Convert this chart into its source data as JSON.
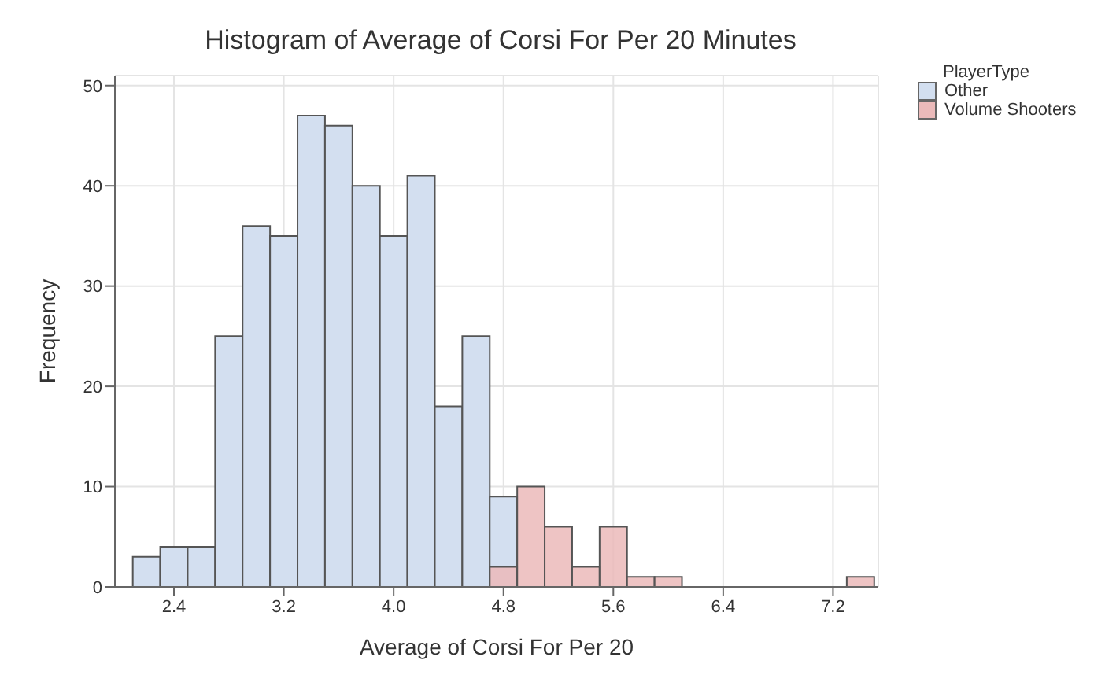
{
  "chart_data": {
    "type": "histogram",
    "title": "Histogram of Average of Corsi For Per 20 Minutes",
    "xlabel": "Average of Corsi For Per 20",
    "ylabel": "Frequency",
    "legend_title": "PlayerType",
    "bins": [
      2.1,
      2.3,
      2.5,
      2.7,
      2.9,
      3.1,
      3.3,
      3.5,
      3.7,
      3.9,
      4.1,
      4.3,
      4.5,
      4.7,
      4.9,
      5.1,
      5.3,
      5.5,
      5.7,
      5.9,
      6.1,
      6.3,
      6.5,
      6.7,
      6.9,
      7.1,
      7.3,
      7.5
    ],
    "series": [
      {
        "name": "Other",
        "color": "#d3dff0",
        "values": [
          3,
          4,
          4,
          25,
          36,
          35,
          47,
          46,
          40,
          35,
          41,
          18,
          25,
          9,
          0,
          0,
          0,
          0,
          0,
          0,
          0,
          0,
          0,
          0,
          0,
          0,
          0
        ]
      },
      {
        "name": "Volume Shooters",
        "color": "#ebbaba",
        "values": [
          0,
          0,
          0,
          0,
          0,
          0,
          0,
          0,
          0,
          0,
          0,
          0,
          0,
          2,
          10,
          6,
          2,
          6,
          1,
          1,
          0,
          0,
          0,
          0,
          0,
          0,
          1
        ]
      }
    ],
    "xlim": [
      1.97,
      7.53
    ],
    "xticks": [
      2.4,
      3.2,
      {
        "value": 4,
        "label": "4.0"
      },
      4.8,
      5.6,
      6.4,
      7.2
    ],
    "ylim": [
      0,
      51
    ],
    "yticks": [
      0,
      10,
      20,
      30,
      40,
      50
    ],
    "grid": true,
    "legend": "right"
  }
}
